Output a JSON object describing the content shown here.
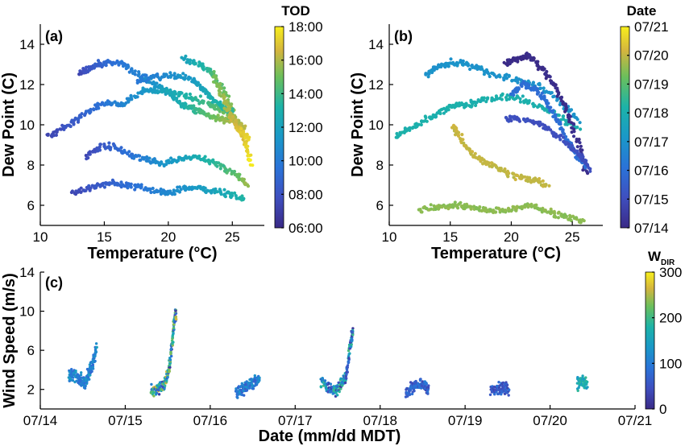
{
  "chart_data": [
    {
      "type": "scatter",
      "panel_label": "(a)",
      "xlabel": "Temperature (°C)",
      "ylabel": "Dew Point (C)",
      "xlim": [
        10,
        27.5
      ],
      "ylim": [
        5,
        15
      ],
      "xticks": [
        10,
        15,
        20,
        25
      ],
      "yticks": [
        6,
        8,
        10,
        12,
        14
      ],
      "colorbar": {
        "title": "TOD",
        "ticks": [
          "18:00",
          "16:00",
          "14:00",
          "12:00",
          "10:00",
          "08:00",
          "06:00"
        ],
        "range": [
          "06:00",
          "18:00"
        ]
      },
      "tracks": [
        {
          "pts": [
            [
              13,
              12.5
            ],
            [
              14,
              12.9
            ],
            [
              15,
              13.1
            ],
            [
              16.5,
              13.0
            ],
            [
              18,
              12.3
            ],
            [
              19,
              12.0
            ],
            [
              20,
              11.6
            ],
            [
              21,
              11.0
            ],
            [
              22,
              10.8
            ],
            [
              23,
              10.5
            ],
            [
              24,
              10.3
            ],
            [
              25,
              10.2
            ],
            [
              25.8,
              9.8
            ]
          ],
          "c": [
            0.12,
            0.9
          ]
        },
        {
          "pts": [
            [
              10.5,
              9.4
            ],
            [
              12,
              9.9
            ],
            [
              13.5,
              10.6
            ],
            [
              15,
              11.1
            ],
            [
              16.5,
              11.0
            ],
            [
              18,
              11.7
            ],
            [
              19.5,
              11.7
            ],
            [
              21,
              11.5
            ],
            [
              22.5,
              11.2
            ],
            [
              24,
              10.8
            ],
            [
              25,
              10.4
            ],
            [
              26,
              9.8
            ]
          ],
          "c": [
            0.1,
            0.85
          ]
        },
        {
          "pts": [
            [
              13.5,
              8.4
            ],
            [
              15,
              9.0
            ],
            [
              16.5,
              8.7
            ],
            [
              18,
              8.3
            ],
            [
              19.5,
              8.1
            ],
            [
              21,
              8.3
            ],
            [
              22.5,
              8.4
            ],
            [
              24,
              8.0
            ],
            [
              25.3,
              7.5
            ],
            [
              26.2,
              7.0
            ]
          ],
          "c": [
            0.12,
            0.8
          ]
        },
        {
          "pts": [
            [
              12.5,
              6.6
            ],
            [
              14,
              6.9
            ],
            [
              15.5,
              7.1
            ],
            [
              17,
              7.0
            ],
            [
              18.5,
              6.8
            ],
            [
              20,
              6.6
            ],
            [
              21.5,
              6.9
            ],
            [
              23,
              6.8
            ],
            [
              24.5,
              6.6
            ],
            [
              26,
              6.3
            ]
          ],
          "c": [
            0.12,
            0.6
          ]
        },
        {
          "pts": [
            [
              21,
              13.3
            ],
            [
              22.5,
              13.0
            ],
            [
              23.5,
              12.5
            ],
            [
              24.5,
              11.5
            ],
            [
              25.3,
              10.2
            ],
            [
              26,
              9.2
            ],
            [
              26.5,
              8.0
            ]
          ],
          "c": [
            0.5,
            1.0
          ]
        },
        {
          "pts": [
            [
              17.5,
              12.2
            ],
            [
              19,
              12.4
            ],
            [
              20.5,
              12.5
            ],
            [
              22,
              12.2
            ],
            [
              23,
              11.6
            ],
            [
              24,
              11.0
            ],
            [
              25,
              10.7
            ]
          ],
          "c": [
            0.3,
            0.65
          ]
        },
        {
          "pts": [
            [
              23.5,
              12.5
            ],
            [
              24.2,
              11.5
            ],
            [
              24.8,
              10.5
            ],
            [
              25.5,
              9.8
            ],
            [
              26.3,
              9.3
            ]
          ],
          "c": [
            0.75,
            0.95
          ]
        }
      ]
    },
    {
      "type": "scatter",
      "panel_label": "(b)",
      "xlabel": "Temperature (°C)",
      "ylabel": "Dew Point (C)",
      "xlim": [
        10,
        27.5
      ],
      "ylim": [
        5,
        15
      ],
      "xticks": [
        10,
        15,
        20,
        25
      ],
      "yticks": [
        6,
        8,
        10,
        12,
        14
      ],
      "colorbar": {
        "title": "Date",
        "ticks": [
          "07/21",
          "07/20",
          "07/19",
          "07/18",
          "07/17",
          "07/16",
          "07/15",
          "07/14"
        ],
        "range": [
          "07/14",
          "07/21"
        ]
      },
      "tracks": [
        {
          "pts": [
            [
              13,
              12.5
            ],
            [
              14,
              12.9
            ],
            [
              15,
              13.1
            ],
            [
              16.5,
              13.0
            ],
            [
              18,
              12.6
            ],
            [
              20,
              12.3
            ],
            [
              22,
              12.0
            ],
            [
              24,
              11.2
            ],
            [
              25.5,
              10.2
            ]
          ],
          "c": [
            0.43,
            0.43
          ]
        },
        {
          "pts": [
            [
              10.5,
              9.4
            ],
            [
              12,
              9.9
            ],
            [
              13.5,
              10.4
            ],
            [
              15,
              10.9
            ],
            [
              16.5,
              11.0
            ],
            [
              18,
              11.3
            ],
            [
              20,
              11.4
            ],
            [
              22,
              11.0
            ],
            [
              24,
              10.4
            ],
            [
              25.5,
              9.8
            ]
          ],
          "c": [
            0.58,
            0.58
          ]
        },
        {
          "pts": [
            [
              15.2,
              10.0
            ],
            [
              16,
              9.2
            ],
            [
              17,
              8.4
            ],
            [
              18.5,
              8.0
            ],
            [
              20,
              7.5
            ],
            [
              21.5,
              7.3
            ],
            [
              23,
              7.0
            ]
          ],
          "c": [
            0.86,
            0.86
          ]
        },
        {
          "pts": [
            [
              12.5,
              5.8
            ],
            [
              14,
              5.9
            ],
            [
              15.5,
              6.0
            ],
            [
              17,
              5.9
            ],
            [
              18.5,
              5.7
            ],
            [
              20,
              5.8
            ],
            [
              21.5,
              6.0
            ],
            [
              23,
              5.7
            ],
            [
              24.5,
              5.4
            ],
            [
              26,
              5.2
            ]
          ],
          "c": [
            0.79,
            0.79
          ]
        },
        {
          "pts": [
            [
              19.5,
              13.0
            ],
            [
              20.5,
              13.3
            ],
            [
              21.5,
              13.4
            ],
            [
              22.5,
              12.8
            ],
            [
              23.5,
              12.0
            ],
            [
              24.5,
              10.8
            ],
            [
              25.5,
              9.0
            ],
            [
              26.2,
              7.5
            ]
          ],
          "c": [
            0.0,
            0.02
          ]
        },
        {
          "pts": [
            [
              20,
              11.5
            ],
            [
              21,
              12.0
            ],
            [
              22,
              11.8
            ],
            [
              23,
              11.0
            ],
            [
              24,
              10.0
            ],
            [
              25,
              8.8
            ],
            [
              26,
              8.0
            ]
          ],
          "c": [
            0.28,
            0.28
          ]
        },
        {
          "pts": [
            [
              19.5,
              10.3
            ],
            [
              21,
              10.3
            ],
            [
              22.5,
              10.0
            ],
            [
              24,
              9.4
            ],
            [
              25.5,
              8.6
            ],
            [
              26.5,
              7.8
            ]
          ],
          "c": [
            0.15,
            0.15
          ]
        }
      ]
    },
    {
      "type": "scatter",
      "panel_label": "(c)",
      "xlabel": "Date (mm/dd MDT)",
      "ylabel": "Wind Speed (m/s)",
      "xlim": [
        "07/14",
        "07/21"
      ],
      "ylim": [
        0,
        14
      ],
      "xticks": [
        "07/14",
        "07/15",
        "07/16",
        "07/17",
        "07/18",
        "07/19",
        "07/20",
        "07/21"
      ],
      "yticks": [
        2,
        6,
        10,
        14
      ],
      "colorbar": {
        "title": "W",
        "title_sub": "DIR",
        "ticks": [
          "300",
          "200",
          "100",
          "0"
        ],
        "range": [
          0,
          360
        ]
      },
      "tracks": [
        {
          "pts": [
            [
              0.33,
              3.3
            ],
            [
              0.4,
              3.5
            ],
            [
              0.47,
              3.1
            ],
            [
              0.53,
              2.7
            ],
            [
              0.57,
              3.6
            ],
            [
              0.62,
              4.6
            ],
            [
              0.66,
              6.3
            ]
          ],
          "c": [
            0.25,
            0.5
          ]
        },
        {
          "pts": [
            [
              1.3,
              1.9
            ],
            [
              1.38,
              2.0
            ],
            [
              1.45,
              2.4
            ],
            [
              1.5,
              3.5
            ],
            [
              1.54,
              5.5
            ],
            [
              1.57,
              8.5
            ],
            [
              1.6,
              10.0
            ]
          ],
          "c": [
            0.05,
            0.9
          ]
        },
        {
          "pts": [
            [
              2.3,
              1.6
            ],
            [
              2.38,
              2.0
            ],
            [
              2.45,
              2.4
            ],
            [
              2.52,
              2.8
            ],
            [
              2.58,
              3.2
            ]
          ],
          "c": [
            0.2,
            0.45
          ]
        },
        {
          "pts": [
            [
              3.3,
              3.0
            ],
            [
              3.38,
              2.2
            ],
            [
              3.46,
              1.9
            ],
            [
              3.54,
              2.3
            ],
            [
              3.6,
              3.5
            ],
            [
              3.65,
              6.5
            ],
            [
              3.68,
              8.0
            ]
          ],
          "c": [
            0.05,
            0.7
          ]
        },
        {
          "pts": [
            [
              4.3,
              1.7
            ],
            [
              4.38,
              2.2
            ],
            [
              4.45,
              2.6
            ],
            [
              4.52,
              2.4
            ],
            [
              4.57,
              2.0
            ]
          ],
          "c": [
            0.1,
            0.35
          ]
        },
        {
          "pts": [
            [
              5.3,
              1.9
            ],
            [
              5.38,
              2.1
            ],
            [
              5.45,
              2.2
            ],
            [
              5.52,
              1.8
            ]
          ],
          "c": [
            0.08,
            0.3
          ]
        },
        {
          "pts": [
            [
              6.32,
              2.5
            ],
            [
              6.38,
              2.9
            ],
            [
              6.44,
              2.4
            ]
          ],
          "c": [
            0.45,
            0.65
          ]
        }
      ]
    }
  ]
}
